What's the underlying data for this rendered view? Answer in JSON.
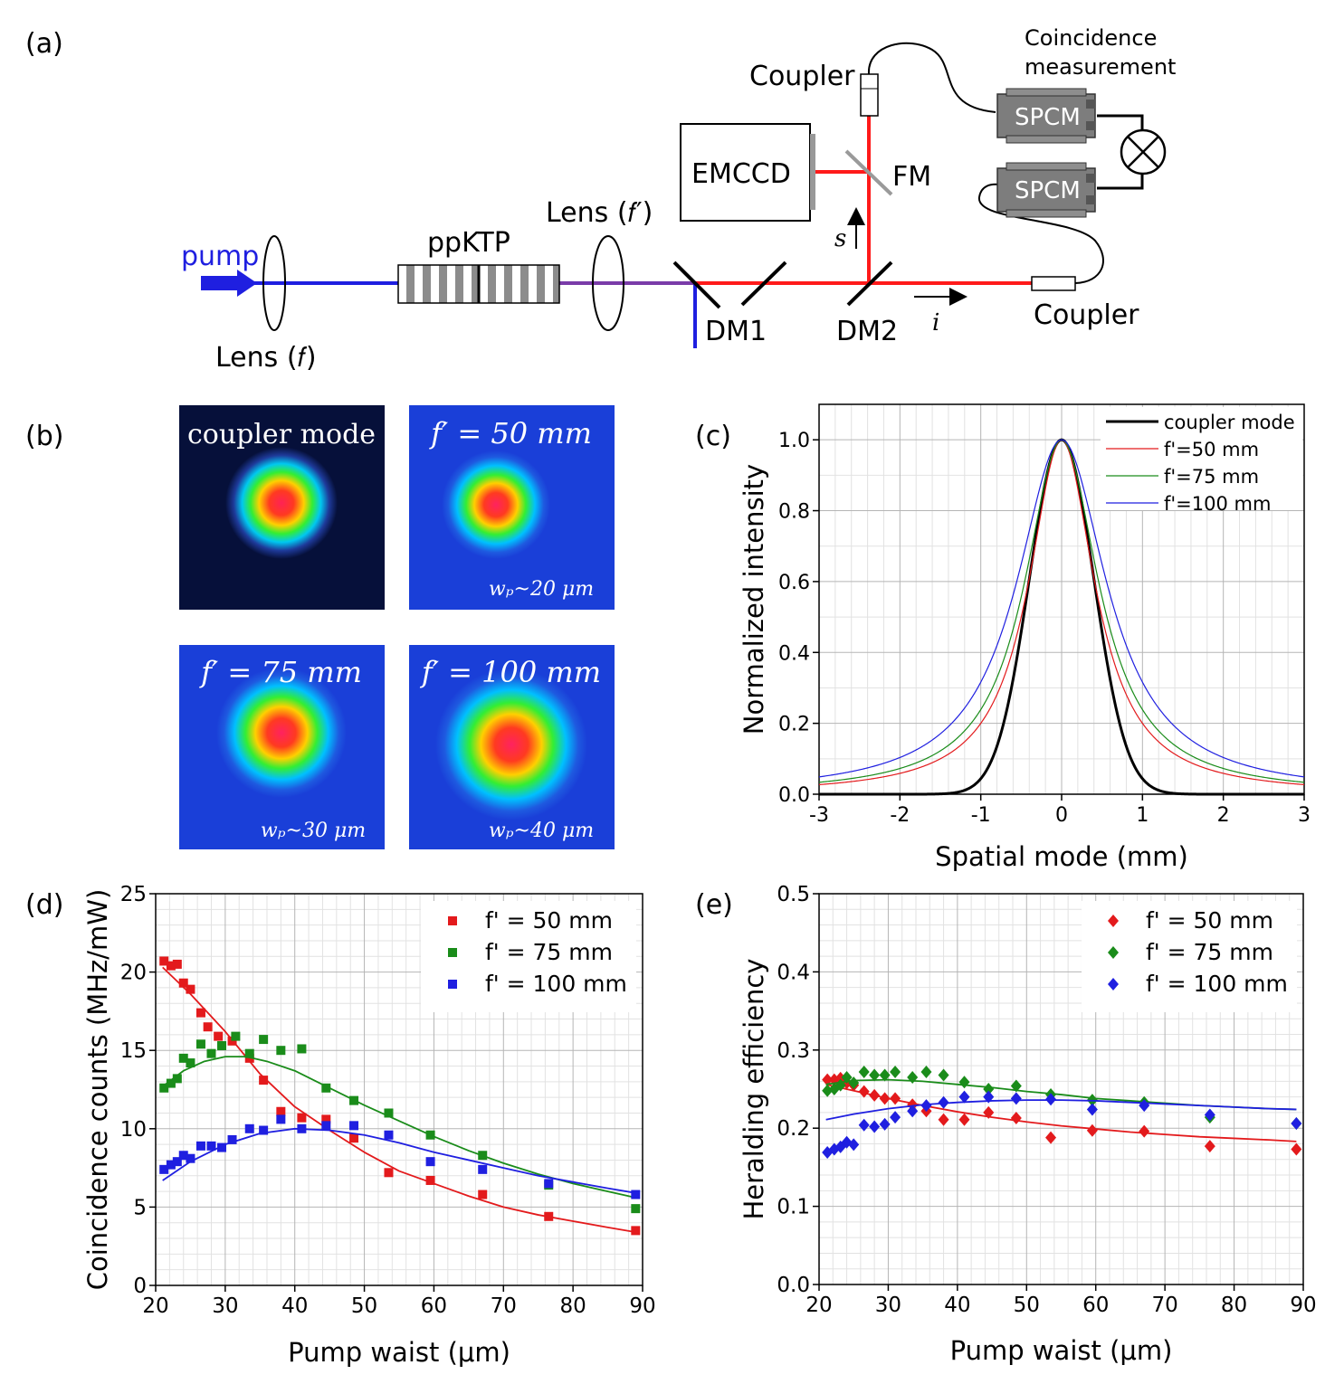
{
  "panels": {
    "a": "(a)",
    "b": "(b)",
    "c": "(c)",
    "d": "(d)",
    "e": "(e)"
  },
  "setup": {
    "pump": "pump",
    "lens_f": "Lens (𝑓)",
    "ppktp": "ppKTP",
    "lens_fp": "Lens (𝑓′)",
    "dm1": "DM1",
    "dm2": "DM2",
    "emccd": "EMCCD",
    "fm": "FM",
    "coupler_top": "Coupler",
    "coupler_right": "Coupler",
    "spcm1": "SPCM",
    "spcm2": "SPCM",
    "coincidence_line1": "Coincidence",
    "coincidence_line2": "measurement",
    "s": "s",
    "i": "i"
  },
  "images": [
    {
      "title": "coupler mode",
      "caption": "",
      "style": "dark"
    },
    {
      "title": "𝑓′ = 50 𝑚𝑚",
      "caption": "𝑤ₚ~20 𝜇𝑚",
      "style": "blue"
    },
    {
      "title": "𝑓′ = 75 𝑚𝑚",
      "caption": "𝑤ₚ~30 𝜇𝑚",
      "style": "blue"
    },
    {
      "title": "𝑓′ = 100 𝑚𝑚",
      "caption": "𝑤ₚ~40 𝜇𝑚",
      "style": "blue"
    }
  ],
  "chart_data": [
    {
      "id": "c",
      "type": "line",
      "xlabel": "Spatial mode (mm)",
      "ylabel": "Normalized intensity",
      "xlim": [
        -3,
        3
      ],
      "ylim": [
        0,
        1.1
      ],
      "xticks": [
        -3,
        -2,
        -1,
        0,
        1,
        2,
        3
      ],
      "yticks": [
        0.0,
        0.2,
        0.4,
        0.6,
        0.8,
        1.0
      ],
      "xtick_labels": [
        "-3",
        "-2",
        "-1",
        "0",
        "1",
        "2",
        "3"
      ],
      "ytick_labels": [
        "0.0",
        "0.2",
        "0.4",
        "0.6",
        "0.8",
        "1.0"
      ],
      "legend_position": "top-right",
      "series": [
        {
          "name": "coupler mode",
          "color": "#000000",
          "model": "gaussian",
          "sigma": 0.4
        },
        {
          "name": "f'=50 mm",
          "color": "#e31a1c",
          "model": "lorentzian",
          "gamma": 0.5
        },
        {
          "name": "f'=75 mm",
          "color": "#1a8c1a",
          "model": "lorentzian",
          "gamma": 0.56
        },
        {
          "name": "f'=100 mm",
          "color": "#1f1fe0",
          "model": "lorentzian",
          "gamma": 0.68
        }
      ]
    },
    {
      "id": "d",
      "type": "scatter",
      "xlabel": "Pump waist (μm)",
      "ylabel": "Coincidence counts (MHz/mW)",
      "xlim": [
        20,
        90
      ],
      "ylim": [
        0,
        25
      ],
      "xticks": [
        20,
        30,
        40,
        50,
        60,
        70,
        80,
        90
      ],
      "yticks": [
        0,
        5,
        10,
        15,
        20,
        25
      ],
      "xtick_labels": [
        "20",
        "30",
        "40",
        "50",
        "60",
        "70",
        "80",
        "90"
      ],
      "ytick_labels": [
        "0",
        "5",
        "10",
        "15",
        "20",
        "25"
      ],
      "legend_position": "top-right",
      "series": [
        {
          "name": "f' = 50 mm",
          "color": "#e31a1c",
          "x": [
            21.2,
            22.2,
            23.1,
            24.0,
            25.0,
            26.5,
            27.5,
            29.0,
            31.0,
            33.5,
            35.5,
            38.0,
            41.0,
            44.5,
            48.5,
            53.5,
            59.5,
            67.0,
            76.5,
            89.0
          ],
          "y": [
            20.7,
            20.4,
            20.5,
            19.3,
            18.9,
            17.4,
            16.5,
            15.9,
            15.6,
            14.5,
            13.1,
            11.1,
            10.7,
            10.6,
            9.4,
            7.2,
            6.7,
            5.8,
            4.4,
            3.5
          ],
          "fit_x": [
            21,
            25,
            30,
            35,
            40,
            45,
            50,
            55,
            60,
            65,
            70,
            75,
            80,
            85,
            89
          ],
          "fit_y": [
            20.3,
            18.6,
            16.2,
            13.5,
            11.4,
            9.9,
            8.5,
            7.3,
            6.5,
            5.7,
            5.0,
            4.5,
            4.1,
            3.7,
            3.4
          ]
        },
        {
          "name": "f' = 75 mm",
          "color": "#1a8c1a",
          "x": [
            21.2,
            22.2,
            23.1,
            24.0,
            25.0,
            26.5,
            28.0,
            29.5,
            31.5,
            33.5,
            35.5,
            38.0,
            41.0,
            44.5,
            48.5,
            53.5,
            59.5,
            67.0,
            76.5,
            89.0
          ],
          "y": [
            12.6,
            12.9,
            13.2,
            14.5,
            14.2,
            15.4,
            14.8,
            15.3,
            15.9,
            14.8,
            15.7,
            15.0,
            15.1,
            12.6,
            11.8,
            11.0,
            9.6,
            8.3,
            6.4,
            4.9
          ],
          "fit_x": [
            21,
            24,
            27,
            30,
            33,
            36,
            40,
            45,
            50,
            55,
            60,
            65,
            70,
            75,
            80,
            85,
            89
          ],
          "fit_y": [
            12.7,
            13.7,
            14.3,
            14.6,
            14.6,
            14.3,
            13.7,
            12.6,
            11.5,
            10.5,
            9.5,
            8.6,
            7.8,
            7.1,
            6.5,
            6.0,
            5.6
          ]
        },
        {
          "name": "f' = 100 mm",
          "color": "#1f1fe0",
          "x": [
            21.2,
            22.2,
            23.1,
            24.0,
            25.0,
            26.5,
            28.0,
            29.5,
            31.0,
            33.5,
            35.5,
            38.0,
            41.0,
            44.5,
            48.5,
            53.5,
            59.5,
            67.0,
            76.5,
            89.0
          ],
          "y": [
            7.4,
            7.7,
            7.9,
            8.3,
            8.1,
            8.9,
            8.9,
            8.8,
            9.3,
            10.0,
            9.9,
            10.6,
            10.0,
            10.2,
            10.2,
            9.6,
            7.9,
            7.4,
            6.5,
            5.8
          ],
          "fit_x": [
            21,
            25,
            30,
            35,
            40,
            45,
            50,
            55,
            60,
            65,
            70,
            75,
            80,
            85,
            89
          ],
          "fit_y": [
            6.7,
            7.9,
            9.0,
            9.7,
            10.0,
            9.9,
            9.6,
            9.1,
            8.5,
            8.0,
            7.5,
            7.0,
            6.6,
            6.2,
            5.9
          ]
        }
      ]
    },
    {
      "id": "e",
      "type": "scatter",
      "xlabel": "Pump waist (μm)",
      "ylabel": "Heralding efficiency",
      "xlim": [
        20,
        90
      ],
      "ylim": [
        0,
        0.5
      ],
      "xticks": [
        20,
        30,
        40,
        50,
        60,
        70,
        80,
        90
      ],
      "yticks": [
        0.0,
        0.1,
        0.2,
        0.3,
        0.4,
        0.5
      ],
      "xtick_labels": [
        "20",
        "30",
        "40",
        "50",
        "60",
        "70",
        "80",
        "90"
      ],
      "ytick_labels": [
        "0.0",
        "0.1",
        "0.2",
        "0.3",
        "0.4",
        "0.5"
      ],
      "legend_position": "top-right",
      "series": [
        {
          "name": "f' = 50 mm",
          "color": "#e31a1c",
          "x": [
            21.2,
            22.2,
            23.1,
            24.0,
            25.0,
            26.5,
            28.0,
            29.5,
            31.0,
            33.5,
            35.5,
            38.0,
            41.0,
            44.5,
            48.5,
            53.5,
            59.5,
            67.0,
            76.5,
            89.0
          ],
          "y": [
            0.262,
            0.262,
            0.264,
            0.258,
            0.255,
            0.247,
            0.242,
            0.238,
            0.238,
            0.23,
            0.222,
            0.211,
            0.211,
            0.22,
            0.213,
            0.188,
            0.197,
            0.196,
            0.177,
            0.173
          ],
          "fit_x": [
            21,
            25,
            30,
            35,
            40,
            45,
            50,
            55,
            60,
            65,
            70,
            75,
            80,
            85,
            89
          ],
          "fit_y": [
            0.256,
            0.248,
            0.238,
            0.229,
            0.221,
            0.214,
            0.208,
            0.203,
            0.199,
            0.195,
            0.192,
            0.189,
            0.187,
            0.185,
            0.183
          ]
        },
        {
          "name": "f' = 75 mm",
          "color": "#1a8c1a",
          "x": [
            21.2,
            22.2,
            23.1,
            24.0,
            25.0,
            26.5,
            28.0,
            29.5,
            31.0,
            33.5,
            35.5,
            38.0,
            41.0,
            44.5,
            48.5,
            53.5,
            59.5,
            67.0,
            76.5,
            89.0
          ],
          "y": [
            0.248,
            0.25,
            0.255,
            0.265,
            0.258,
            0.272,
            0.268,
            0.268,
            0.272,
            0.265,
            0.272,
            0.268,
            0.259,
            0.25,
            0.254,
            0.243,
            0.236,
            0.233,
            0.214,
            0.206
          ],
          "fit_x": [
            21,
            25,
            30,
            35,
            40,
            45,
            50,
            55,
            60,
            65,
            70,
            75,
            80,
            85,
            89
          ],
          "fit_y": [
            0.256,
            0.261,
            0.262,
            0.26,
            0.256,
            0.252,
            0.247,
            0.243,
            0.238,
            0.235,
            0.232,
            0.229,
            0.227,
            0.225,
            0.224
          ]
        },
        {
          "name": "f' = 100 mm",
          "color": "#1f1fe0",
          "x": [
            21.2,
            22.2,
            23.1,
            24.0,
            25.0,
            26.5,
            28.0,
            29.5,
            31.0,
            33.5,
            35.5,
            38.0,
            41.0,
            44.5,
            48.5,
            53.5,
            59.5,
            67.0,
            76.5,
            89.0
          ],
          "y": [
            0.169,
            0.173,
            0.176,
            0.182,
            0.179,
            0.204,
            0.202,
            0.205,
            0.214,
            0.222,
            0.229,
            0.233,
            0.24,
            0.24,
            0.238,
            0.237,
            0.224,
            0.229,
            0.217,
            0.206
          ],
          "fit_x": [
            21,
            25,
            30,
            35,
            40,
            45,
            50,
            55,
            60,
            65,
            70,
            75,
            80,
            85,
            89
          ],
          "fit_y": [
            0.211,
            0.218,
            0.225,
            0.23,
            0.233,
            0.235,
            0.236,
            0.236,
            0.235,
            0.233,
            0.231,
            0.229,
            0.227,
            0.225,
            0.224
          ]
        }
      ]
    }
  ]
}
